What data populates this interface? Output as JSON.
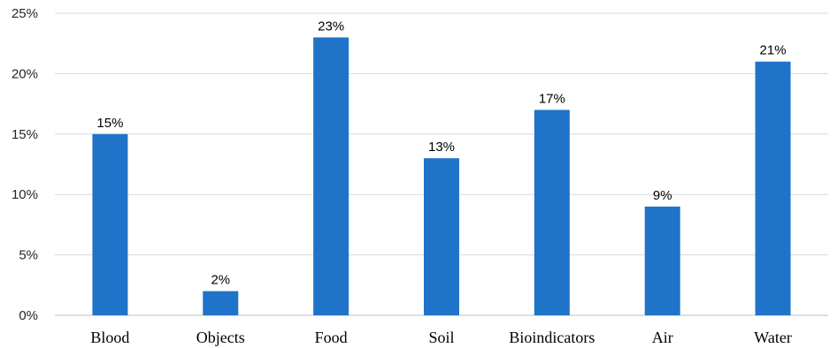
{
  "chart_data": {
    "type": "bar",
    "categories": [
      "Blood",
      "Objects",
      "Food",
      "Soil",
      "Bioindicators",
      "Air",
      "Water"
    ],
    "values": [
      15,
      2,
      23,
      13,
      17,
      9,
      21
    ],
    "data_labels": [
      "15%",
      "2%",
      "23%",
      "13%",
      "17%",
      "9%",
      "21%"
    ],
    "y_ticks": [
      "0%",
      "5%",
      "10%",
      "15%",
      "20%",
      "25%"
    ],
    "ylim": [
      0,
      25
    ],
    "grid": true,
    "legend": "none",
    "bar_color": "#1f73c9"
  }
}
